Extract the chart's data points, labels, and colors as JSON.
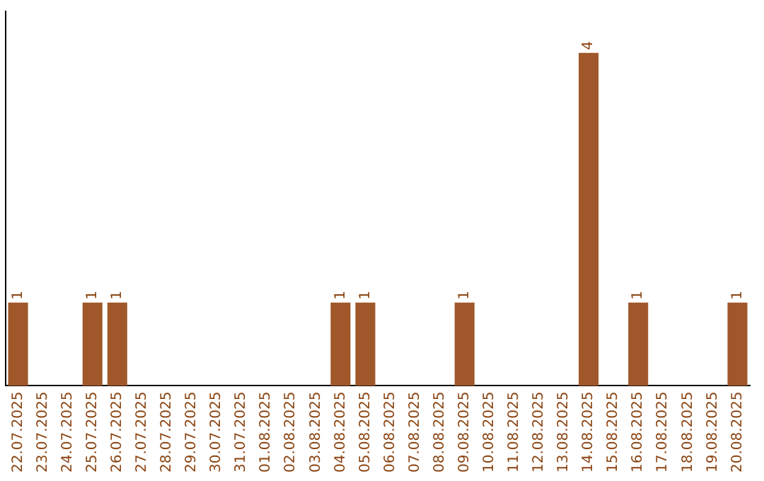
{
  "chart_data": {
    "type": "bar",
    "categories": [
      "22.07.2025",
      "23.07.2025",
      "24.07.2025",
      "25.07.2025",
      "26.07.2025",
      "27.07.2025",
      "28.07.2025",
      "29.07.2025",
      "30.07.2025",
      "31.07.2025",
      "01.08.2025",
      "02.08.2025",
      "03.08.2025",
      "04.08.2025",
      "05.08.2025",
      "06.08.2025",
      "07.08.2025",
      "08.08.2025",
      "09.08.2025",
      "10.08.2025",
      "11.08.2025",
      "12.08.2025",
      "13.08.2025",
      "14.08.2025",
      "15.08.2025",
      "16.08.2025",
      "17.08.2025",
      "18.08.2025",
      "19.08.2025",
      "20.08.2025"
    ],
    "values": [
      1,
      0,
      0,
      1,
      1,
      0,
      0,
      0,
      0,
      0,
      0,
      0,
      0,
      1,
      1,
      0,
      0,
      0,
      1,
      0,
      0,
      0,
      0,
      4,
      0,
      1,
      0,
      0,
      0,
      1
    ],
    "value_labels": [
      "1",
      null,
      null,
      "1",
      "1",
      null,
      null,
      null,
      null,
      null,
      null,
      null,
      null,
      "1",
      "1",
      null,
      null,
      null,
      "1",
      null,
      null,
      null,
      null,
      "4",
      null,
      "1",
      null,
      null,
      null,
      "1"
    ],
    "color": "#a0582a",
    "grid": false,
    "legend": false,
    "tick_labels": "x"
  }
}
